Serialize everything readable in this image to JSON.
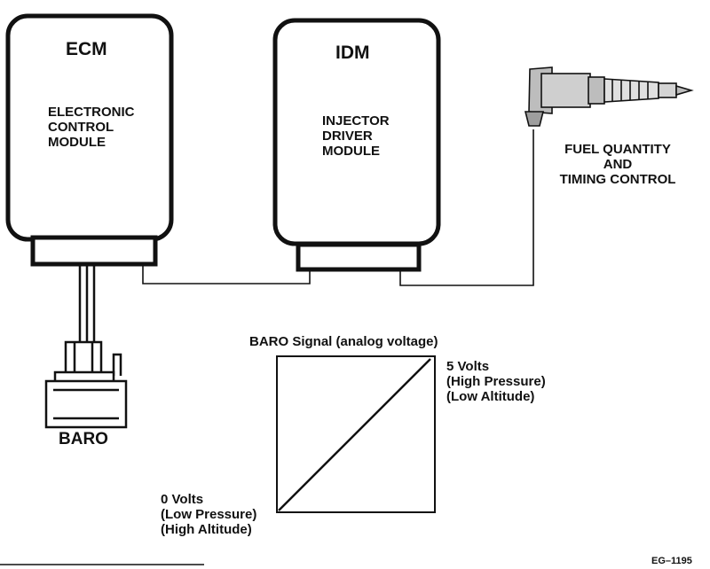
{
  "ecm": {
    "abbr": "ECM",
    "name_lines": [
      "ELECTRONIC",
      "CONTROL",
      "MODULE"
    ]
  },
  "idm": {
    "abbr": "IDM",
    "name_lines": [
      "INJECTOR",
      "DRIVER",
      "MODULE"
    ]
  },
  "injector": {
    "label_lines": [
      "FUEL QUANTITY",
      "AND",
      "TIMING CONTROL"
    ]
  },
  "baro": {
    "label": "BARO"
  },
  "graph": {
    "title": "BARO Signal (analog voltage)",
    "high_lines": [
      "5 Volts",
      "(High Pressure)",
      "(Low Altitude)"
    ],
    "low_lines": [
      "0 Volts",
      "(Low Pressure)",
      "(High Altitude)"
    ]
  },
  "figure_id": "EG–1195",
  "colors": {
    "ink": "#111111",
    "paper": "#ffffff",
    "injector_shade": "#bdbdbd"
  }
}
